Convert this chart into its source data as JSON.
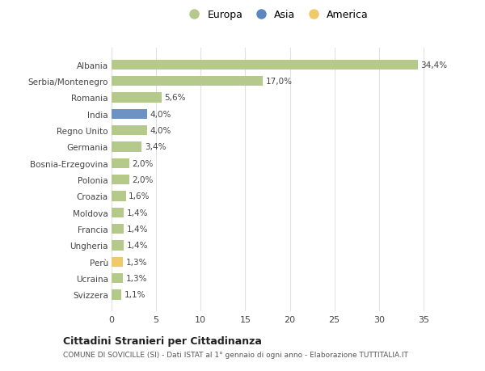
{
  "categories": [
    "Albania",
    "Serbia/Montenegro",
    "Romania",
    "India",
    "Regno Unito",
    "Germania",
    "Bosnia-Erzegovina",
    "Polonia",
    "Croazia",
    "Moldova",
    "Francia",
    "Ungheria",
    "Perù",
    "Ucraina",
    "Svizzera"
  ],
  "values": [
    34.4,
    17.0,
    5.6,
    4.0,
    4.0,
    3.4,
    2.0,
    2.0,
    1.6,
    1.4,
    1.4,
    1.4,
    1.3,
    1.3,
    1.1
  ],
  "labels": [
    "34,4%",
    "17,0%",
    "5,6%",
    "4,0%",
    "4,0%",
    "3,4%",
    "2,0%",
    "2,0%",
    "1,6%",
    "1,4%",
    "1,4%",
    "1,4%",
    "1,3%",
    "1,3%",
    "1,1%"
  ],
  "continent": [
    "Europa",
    "Europa",
    "Europa",
    "Asia",
    "Europa",
    "Europa",
    "Europa",
    "Europa",
    "Europa",
    "Europa",
    "Europa",
    "Europa",
    "America",
    "Europa",
    "Europa"
  ],
  "colors": {
    "Europa": "#b5c98a",
    "Asia": "#6b93c4",
    "America": "#f0c96b"
  },
  "legend_colors": {
    "Europa": "#b5c98a",
    "Asia": "#5b87c0",
    "America": "#f0c96b"
  },
  "xlim": [
    0,
    37
  ],
  "xticks": [
    0,
    5,
    10,
    15,
    20,
    25,
    30,
    35
  ],
  "title": "Cittadini Stranieri per Cittadinanza",
  "subtitle": "COMUNE DI SOVICILLE (SI) - Dati ISTAT al 1° gennaio di ogni anno - Elaborazione TUTTITALIA.IT",
  "bg_color": "#ffffff",
  "grid_color": "#e0e0e0"
}
